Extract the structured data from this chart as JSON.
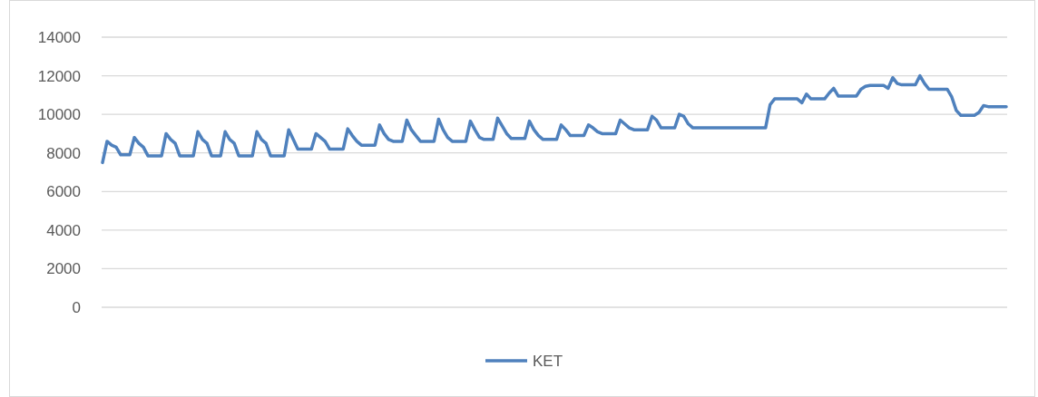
{
  "chart_data": {
    "type": "line",
    "categories": [
      null,
      null,
      null,
      null,
      null,
      null,
      null,
      null,
      null,
      null,
      null,
      null,
      null,
      null,
      null,
      null,
      null,
      null,
      null,
      null,
      null,
      null,
      null,
      null,
      null,
      null,
      null,
      null,
      null,
      null,
      null,
      null,
      null,
      null,
      null,
      null,
      null,
      null,
      null,
      null,
      null,
      null,
      null,
      null,
      null,
      null,
      null,
      null,
      null,
      null,
      null,
      null,
      null,
      null,
      null,
      null,
      null,
      null,
      null,
      null,
      null,
      null,
      null,
      null,
      null,
      null,
      null,
      null,
      null,
      null,
      null,
      null,
      null,
      null,
      null,
      null,
      null,
      null,
      null,
      null,
      null,
      null,
      null,
      null,
      null,
      null,
      null,
      null,
      null,
      null,
      null,
      null,
      null,
      null,
      null,
      null,
      null,
      null,
      null,
      null,
      null,
      null,
      null,
      null,
      null,
      null,
      null,
      null,
      null,
      null,
      null,
      null,
      null,
      null,
      null,
      null,
      null,
      null,
      null,
      null,
      null,
      null,
      null,
      null,
      null,
      null,
      null,
      null,
      null,
      null,
      null,
      null,
      null,
      null,
      null,
      null,
      null,
      null,
      null,
      null,
      null,
      null,
      null,
      null,
      null,
      null,
      null,
      null,
      null,
      null,
      null,
      null,
      null,
      null,
      null,
      null,
      null,
      null,
      null,
      null,
      null,
      null,
      null,
      null,
      null,
      null,
      null,
      null,
      null,
      null,
      null,
      null,
      null,
      null,
      null,
      null,
      null,
      null,
      null,
      null,
      null,
      null,
      null,
      null,
      null,
      null,
      null,
      null,
      null,
      null,
      null,
      null,
      null,
      null,
      null,
      null,
      null,
      null,
      null,
      null
    ],
    "series": [
      {
        "name": "KET",
        "color": "#4f81bd",
        "values": [
          7500,
          8600,
          8400,
          8300,
          7900,
          7900,
          7900,
          8800,
          8500,
          8300,
          7850,
          7850,
          7850,
          7850,
          9000,
          8700,
          8500,
          7850,
          7850,
          7850,
          7850,
          9100,
          8700,
          8500,
          7850,
          7850,
          7850,
          9100,
          8700,
          8500,
          7850,
          7850,
          7850,
          7850,
          9100,
          8700,
          8500,
          7850,
          7850,
          7850,
          7850,
          9200,
          8700,
          8200,
          8200,
          8200,
          8200,
          9000,
          8800,
          8600,
          8200,
          8200,
          8200,
          8200,
          9250,
          8900,
          8600,
          8400,
          8400,
          8400,
          8400,
          9450,
          9000,
          8700,
          8600,
          8600,
          8600,
          9700,
          9200,
          8900,
          8600,
          8600,
          8600,
          8600,
          9750,
          9200,
          8800,
          8600,
          8600,
          8600,
          8600,
          9650,
          9200,
          8800,
          8700,
          8700,
          8700,
          9800,
          9400,
          9000,
          8750,
          8750,
          8750,
          8750,
          9650,
          9200,
          8900,
          8700,
          8700,
          8700,
          8700,
          9450,
          9200,
          8900,
          8900,
          8900,
          8900,
          9450,
          9300,
          9100,
          9000,
          9000,
          9000,
          9000,
          9700,
          9500,
          9300,
          9200,
          9200,
          9200,
          9200,
          9900,
          9700,
          9300,
          9300,
          9300,
          9300,
          10000,
          9900,
          9500,
          9300,
          9300,
          9300,
          9300,
          9300,
          9300,
          9300,
          9300,
          9300,
          9300,
          9300,
          9300,
          9300,
          9300,
          9300,
          9300,
          9300,
          10500,
          10800,
          10800,
          10800,
          10800,
          10800,
          10800,
          10600,
          11050,
          10800,
          10800,
          10800,
          10800,
          11100,
          11350,
          10950,
          10950,
          10950,
          10950,
          10950,
          11300,
          11450,
          11500,
          11500,
          11500,
          11500,
          11350,
          11900,
          11600,
          11530,
          11530,
          11530,
          11530,
          12000,
          11600,
          11300,
          11300,
          11300,
          11300,
          11300,
          10900,
          10200,
          9950,
          9950,
          9950,
          9950,
          10100,
          10450,
          10400,
          10400,
          10400,
          10400,
          10400
        ]
      }
    ],
    "ylim": [
      0,
      14000
    ],
    "yticks": [
      0,
      2000,
      4000,
      6000,
      8000,
      10000,
      12000,
      14000
    ],
    "grid": "y",
    "legend": "bottom",
    "line_style": "solid",
    "marker": "none"
  }
}
